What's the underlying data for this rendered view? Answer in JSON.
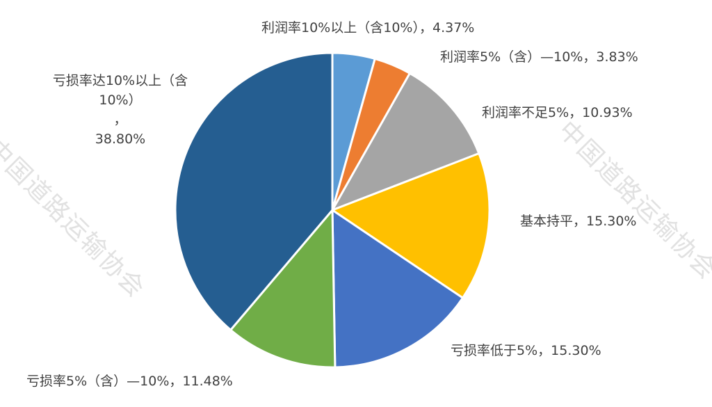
{
  "watermark_text": "中国道路运输协会",
  "chart_data": {
    "type": "pie",
    "title": "",
    "slices": [
      {
        "label": "利润率10%以上（含10%）",
        "value": 4.37,
        "display": "4.37%",
        "color": "#5B9BD5"
      },
      {
        "label": "利润率5%（含）—10%",
        "value": 3.83,
        "display": "3.83%",
        "color": "#ED7D31"
      },
      {
        "label": "利润率不足5%",
        "value": 10.93,
        "display": "10.93%",
        "color": "#A5A5A5"
      },
      {
        "label": "基本持平",
        "value": 15.3,
        "display": "15.30%",
        "color": "#FFC000"
      },
      {
        "label": "亏损率低于5%",
        "value": 15.3,
        "display": "15.30%",
        "color": "#4472C4"
      },
      {
        "label": "亏损率5%（含）—10%",
        "value": 11.48,
        "display": "11.48%",
        "color": "#70AD47"
      },
      {
        "label": "亏损率达10%以上（含10%）",
        "value": 38.8,
        "display": "38.80%",
        "color": "#255E91"
      }
    ]
  }
}
